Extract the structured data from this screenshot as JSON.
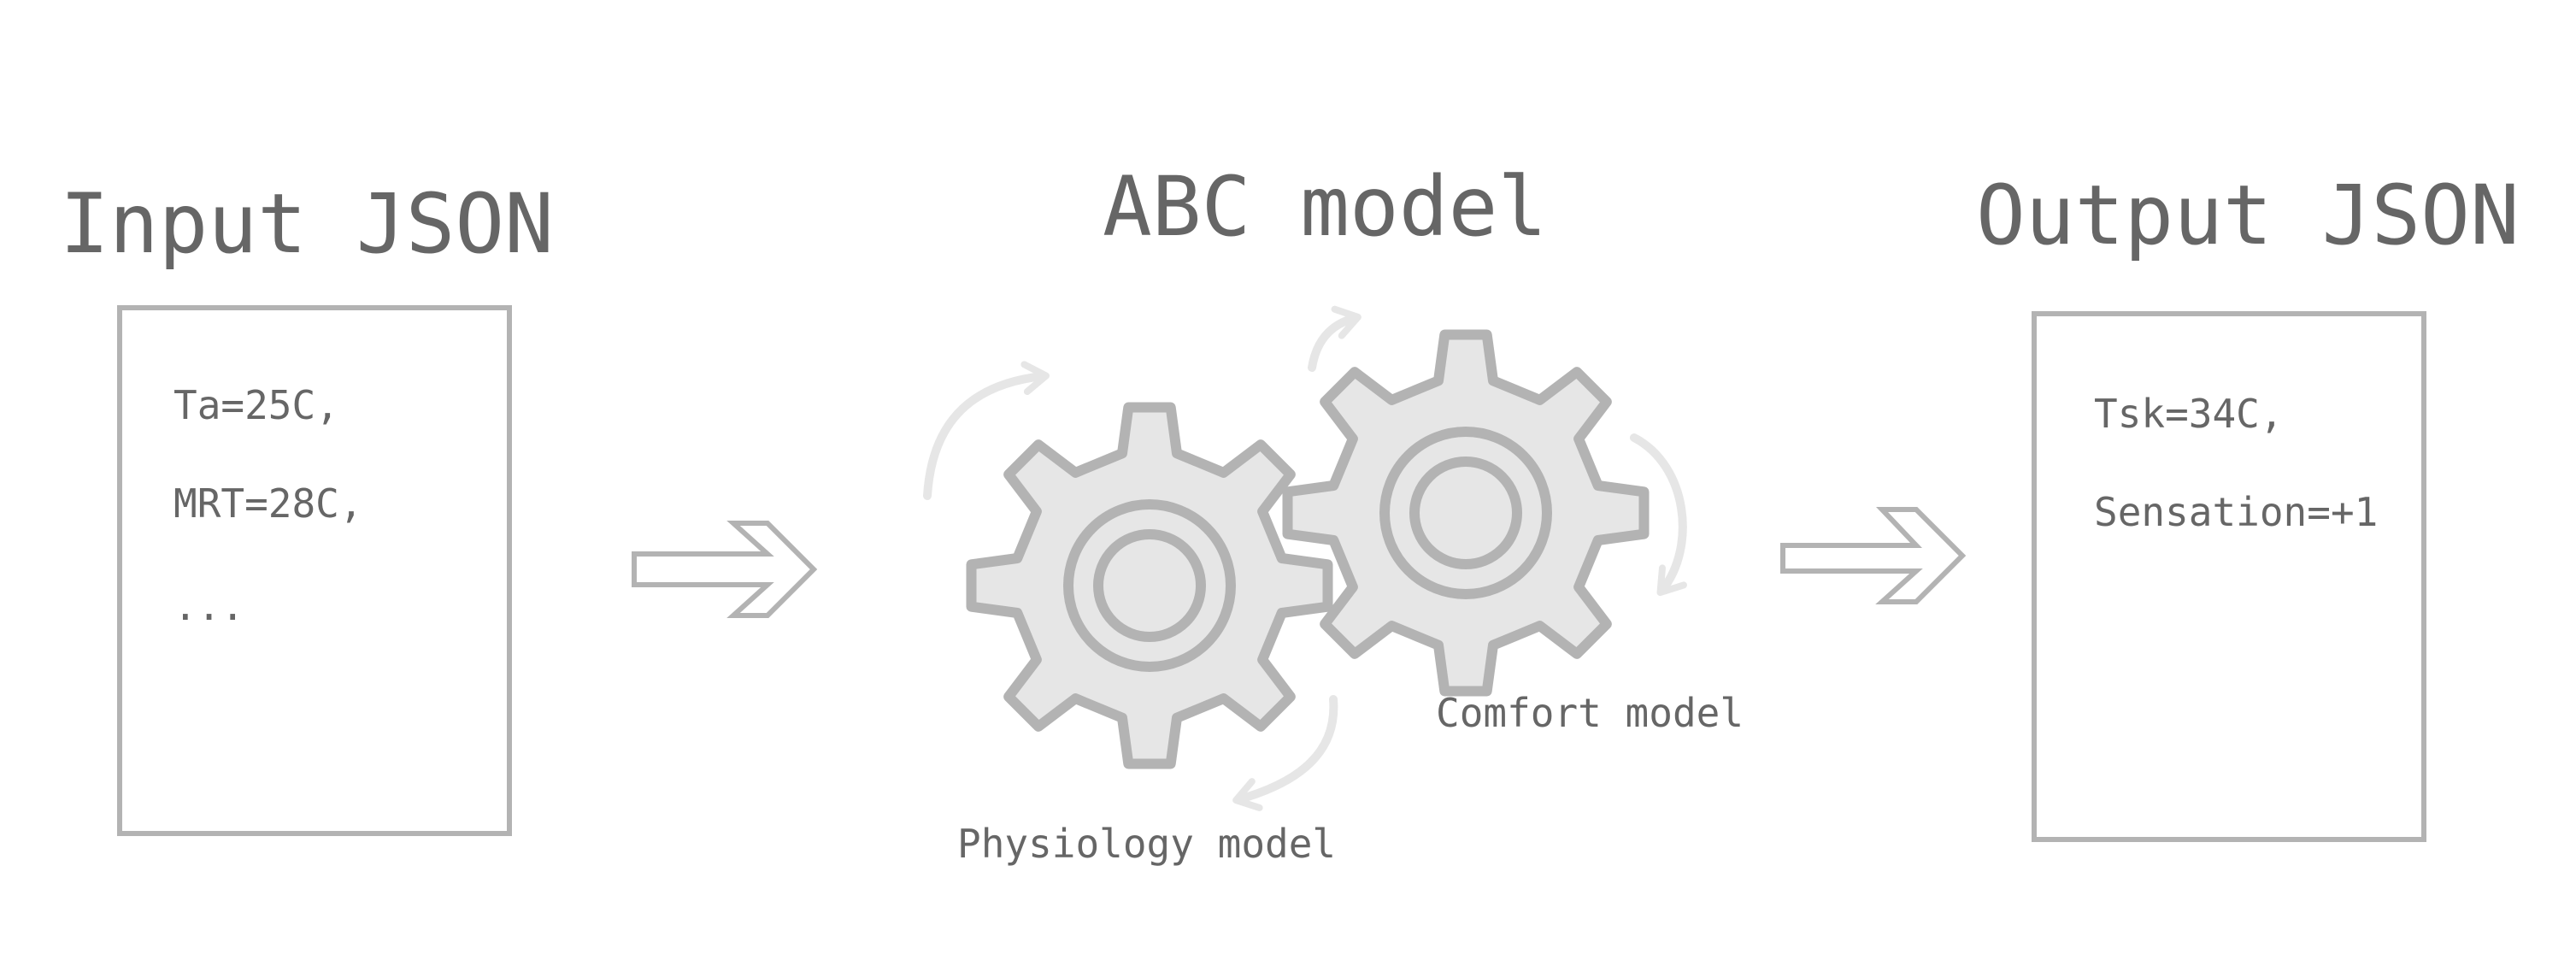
{
  "input": {
    "title": "Input JSON",
    "lines": [
      "Ta=25C,",
      "MRT=28C,",
      "..."
    ]
  },
  "model": {
    "title": "ABC model",
    "physiology_label": "Physiology model",
    "comfort_label": "Comfort model"
  },
  "output": {
    "title": "Output JSON",
    "lines": [
      "Tsk=34C,",
      "Sensation=+1"
    ]
  },
  "colors": {
    "text": "#666666",
    "stroke": "#b3b3b3",
    "gear_fill": "#e6e6e6",
    "arrow_light": "#e6e6e6"
  },
  "icons": [
    "right-arrow-icon",
    "gear-icon",
    "rotation-arrow-icon"
  ]
}
